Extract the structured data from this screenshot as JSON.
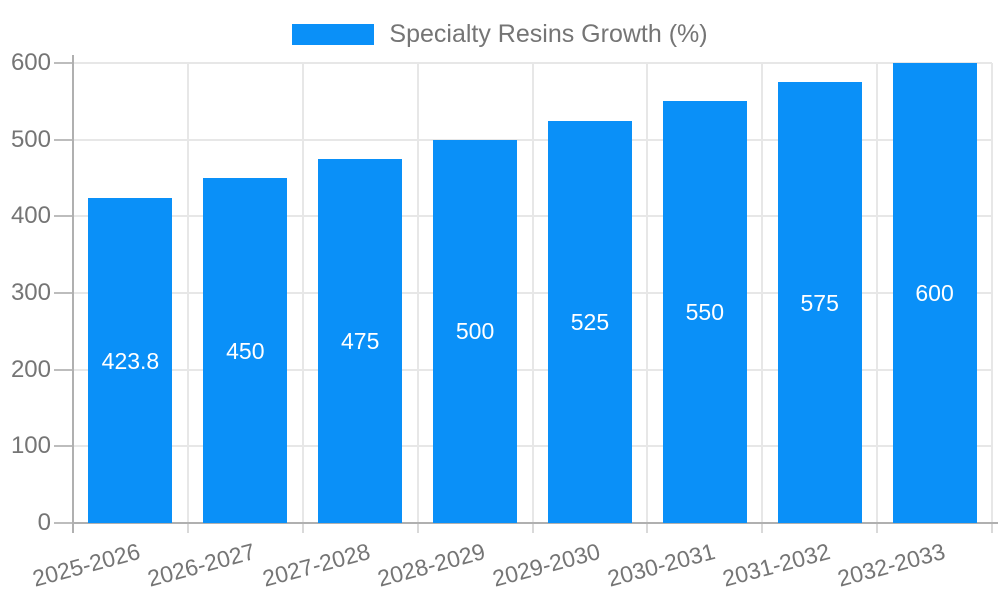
{
  "legend": {
    "label": "Specialty Resins Growth (%)"
  },
  "chart_data": {
    "type": "bar",
    "title": "Specialty Resins Growth (%)",
    "categories": [
      "2025-2026",
      "2026-2027",
      "2027-2028",
      "2028-2029",
      "2029-2030",
      "2030-2031",
      "2031-2032",
      "2032-2033"
    ],
    "values": [
      423.8,
      450,
      475,
      500,
      525,
      550,
      575,
      600
    ],
    "value_labels": [
      "423.8",
      "450",
      "475",
      "500",
      "525",
      "550",
      "575",
      "600"
    ],
    "xlabel": "",
    "ylabel": "",
    "ylim": [
      0,
      600
    ],
    "yticks": [
      0,
      100,
      200,
      300,
      400,
      500,
      600
    ],
    "ytick_labels": [
      "0",
      "100",
      "200",
      "300",
      "400",
      "500",
      "600"
    ],
    "grid": true,
    "legend_position": "top",
    "x_label_rotation_deg": -15,
    "colors": {
      "bar": "#0a90f8",
      "value_label_text": "#ffffff",
      "axis_text": "#757575",
      "grid_line": "#e7e7e7",
      "axis_line": "#b0b0b0"
    }
  }
}
